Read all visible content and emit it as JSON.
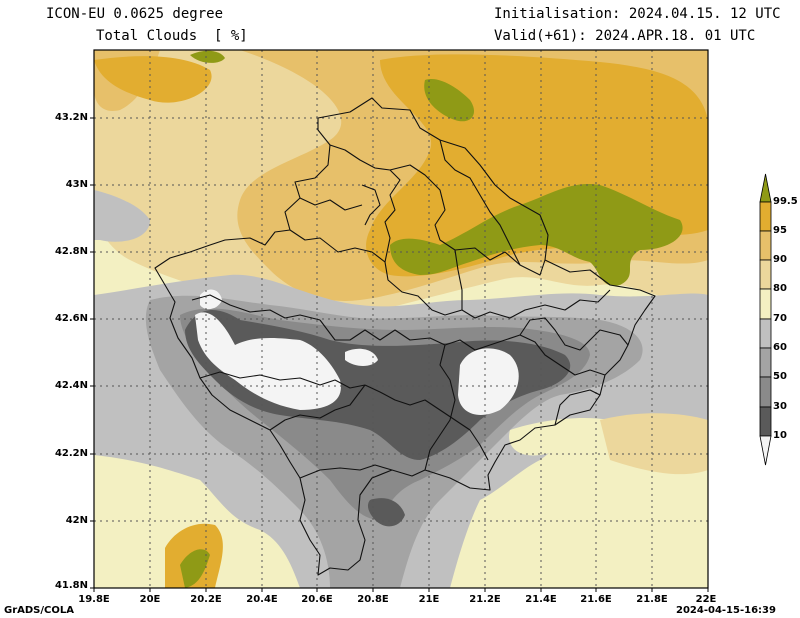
{
  "header": {
    "model": "ICON-EU 0.0625 degree",
    "variable": "Total Clouds  [ %]",
    "init": "Initialisation: 2024.04.15. 12 UTC",
    "valid": "Valid(+61): 2024.APR.18. 01 UTC"
  },
  "footer": {
    "left": "GrADS/COLA",
    "right": "2024-04-15-16:39"
  },
  "axes": {
    "lat_ticks": [
      "43.2N",
      "43N",
      "42.8N",
      "42.6N",
      "42.4N",
      "42.2N",
      "42N",
      "41.8N"
    ],
    "lon_ticks": [
      "19.8E",
      "20E",
      "20.2E",
      "20.4E",
      "20.6E",
      "20.8E",
      "21E",
      "21.2E",
      "21.4E",
      "21.6E",
      "21.8E",
      "22E"
    ]
  },
  "colorbar": {
    "levels": [
      "99.5",
      "95",
      "90",
      "80",
      "70",
      "60",
      "50",
      "30",
      "10"
    ],
    "colors": {
      "lt10": "#f4f4f4",
      "10_30": "#5a5a5a",
      "30_50": "#8a8a8a",
      "50_60": "#a4a4a4",
      "60_70": "#c0c0c0",
      "70_80": "#f3f0c2",
      "80_90": "#ecd79c",
      "90_95": "#e7c06a",
      "95_99.5": "#e2ad30",
      "gt99.5": "#8f9a16"
    }
  }
}
